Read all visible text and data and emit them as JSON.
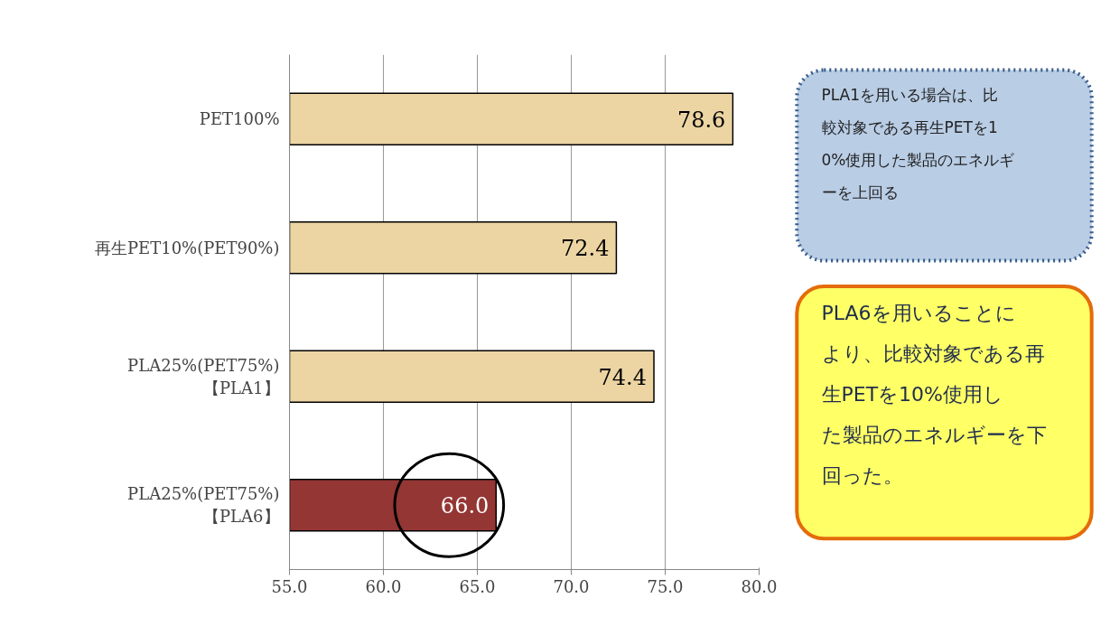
{
  "chart_data": {
    "type": "bar",
    "orientation": "horizontal",
    "categories": [
      "PET100%",
      "再生PET10%(PET90%)",
      "PLA25%(PET75%)\n【PLA1】",
      "PLA25%(PET75%)\n【PLA6】"
    ],
    "values": [
      78.6,
      72.4,
      74.4,
      66.0
    ],
    "value_labels": [
      "78.6",
      "72.4",
      "74.4",
      "66.0"
    ],
    "colors": [
      "#ecd5a3",
      "#ecd5a3",
      "#ecd5a3",
      "#943634"
    ],
    "xlim": [
      55,
      80
    ],
    "xticks": [
      {
        "value": 55,
        "label": "55.0"
      },
      {
        "value": 60,
        "label": "60.0"
      },
      {
        "value": 65,
        "label": "65.0"
      },
      {
        "value": 70,
        "label": "70.0"
      },
      {
        "value": 75,
        "label": "75.0"
      },
      {
        "value": 80,
        "label": "80.0"
      }
    ],
    "grid": "x",
    "annotations": [
      "PLA1を用いる場合は、比較対象である再生PETを10%使用した製品のエネルギーを上回る",
      "PLA6を用いることにより、比較対象である再生PETを10%使用した製品のエネルギーを下回った。"
    ]
  }
}
